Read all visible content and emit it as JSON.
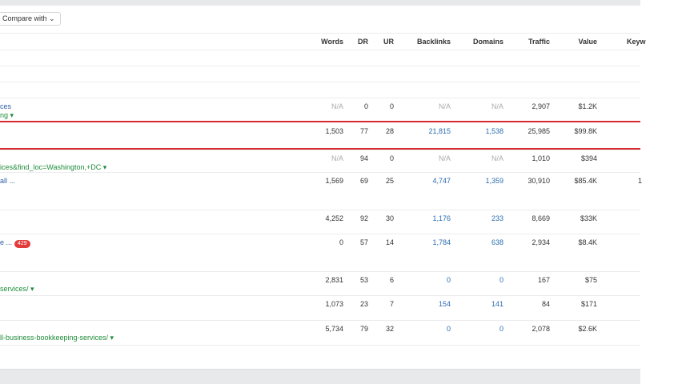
{
  "toolbar": {
    "compare_label": "Compare with ⌄"
  },
  "columns": [
    "Words",
    "DR",
    "UR",
    "Backlinks",
    "Domains",
    "Traffic",
    "Value",
    "Keyw"
  ],
  "rows": [
    {
      "title": "ces",
      "url": "ng ▾",
      "words": "N/A",
      "dr": "0",
      "ur": "0",
      "backlinks": "N/A",
      "domains": "N/A",
      "traffic": "2,907",
      "value": "$1.2K"
    },
    {
      "title": "",
      "url": "",
      "words": "1,503",
      "dr": "77",
      "ur": "28",
      "backlinks": "21,815",
      "domains": "1,538",
      "traffic": "25,985",
      "value": "$99.8K",
      "highlighted": true
    },
    {
      "title": "",
      "url": "ices&find_loc=Washington,+DC ▾",
      "words": "N/A",
      "dr": "94",
      "ur": "0",
      "backlinks": "N/A",
      "domains": "N/A",
      "traffic": "1,010",
      "value": "$394"
    },
    {
      "title": "all ...",
      "url": "",
      "words": "1,569",
      "dr": "69",
      "ur": "25",
      "backlinks": "4,747",
      "domains": "1,359",
      "traffic": "30,910",
      "value": "$85.4K",
      "keyw": "1"
    },
    {
      "title": "",
      "url": "",
      "words": "4,252",
      "dr": "92",
      "ur": "30",
      "backlinks": "1,176",
      "domains": "233",
      "traffic": "8,669",
      "value": "$33K"
    },
    {
      "title": "e ...",
      "badge": "429",
      "url": "",
      "words": "0",
      "dr": "57",
      "ur": "14",
      "backlinks": "1,784",
      "domains": "638",
      "traffic": "2,934",
      "value": "$8.4K"
    },
    {
      "title": "",
      "url": "services/ ▾",
      "words": "2,831",
      "dr": "53",
      "ur": "6",
      "backlinks": "0",
      "domains": "0",
      "traffic": "167",
      "value": "$75"
    },
    {
      "title": "",
      "url": "",
      "words": "1,073",
      "dr": "23",
      "ur": "7",
      "backlinks": "154",
      "domains": "141",
      "traffic": "84",
      "value": "$171"
    },
    {
      "title": "",
      "url": "ll-business-bookkeeping-services/ ▾",
      "words": "5,734",
      "dr": "79",
      "ur": "32",
      "backlinks": "0",
      "domains": "0",
      "traffic": "2,078",
      "value": "$2.6K"
    }
  ],
  "colors": {
    "highlight": "#d62a2f",
    "link": "#2b6cb0",
    "url": "#1e8c3a",
    "badge": "#e23b3b"
  }
}
